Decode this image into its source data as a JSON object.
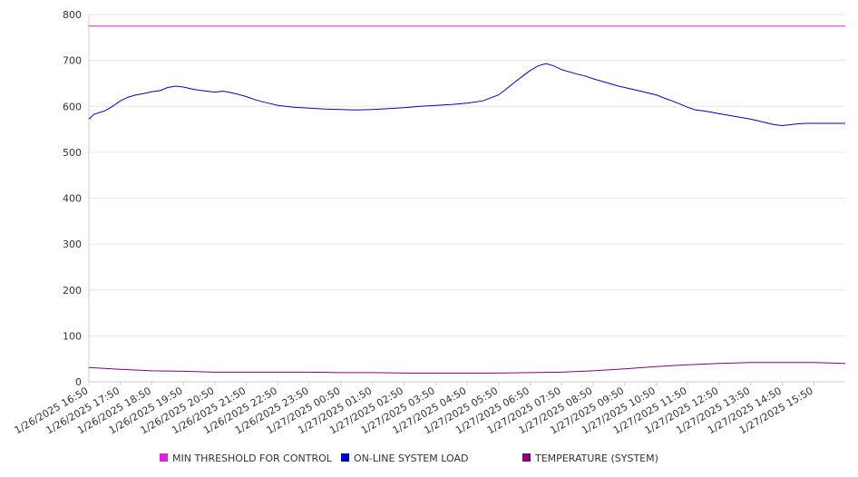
{
  "chart_data": {
    "type": "line",
    "title": "",
    "xlabel": "",
    "ylabel": "",
    "ylim": [
      0,
      800
    ],
    "yticks": [
      0,
      100,
      200,
      300,
      400,
      500,
      600,
      700,
      800
    ],
    "x_tick_labels": [
      "1/26/2025 16:50",
      "1/26/2025 17:50",
      "1/26/2025 18:50",
      "1/26/2025 19:50",
      "1/26/2025 20:50",
      "1/26/2025 21:50",
      "1/26/2025 22:50",
      "1/26/2025 23:50",
      "1/27/2025 00:50",
      "1/27/2025 01:50",
      "1/27/2025 02:50",
      "1/27/2025 03:50",
      "1/27/2025 04:50",
      "1/27/2025 05:50",
      "1/27/2025 06:50",
      "1/27/2025 07:50",
      "1/27/2025 08:50",
      "1/27/2025 09:50",
      "1/27/2025 10:50",
      "1/27/2025 11:50",
      "1/27/2025 12:50",
      "1/27/2025 13:50",
      "1/27/2025 14:50",
      "1/27/2025 15:50"
    ],
    "x_range": [
      "1/26/2025 16:50",
      "1/27/2025 16:50"
    ],
    "grid": true,
    "legend_position": "bottom",
    "series": [
      {
        "name": "MIN THRESHOLD FOR CONTROL",
        "color": "#e020e0",
        "x": [
          "1/26/2025 16:50",
          "1/27/2025 16:50"
        ],
        "values": [
          775,
          775
        ]
      },
      {
        "name": "ON-LINE SYSTEM LOAD",
        "color": "#0000cc",
        "x": [
          "1/26/2025 16:50",
          "1/26/2025 17:00",
          "1/26/2025 17:20",
          "1/26/2025 17:35",
          "1/26/2025 17:50",
          "1/26/2025 18:05",
          "1/26/2025 18:20",
          "1/26/2025 18:35",
          "1/26/2025 18:50",
          "1/26/2025 19:05",
          "1/26/2025 19:20",
          "1/26/2025 19:35",
          "1/26/2025 19:50",
          "1/26/2025 20:05",
          "1/26/2025 20:20",
          "1/26/2025 20:35",
          "1/26/2025 20:50",
          "1/26/2025 21:05",
          "1/26/2025 21:20",
          "1/26/2025 21:35",
          "1/26/2025 21:50",
          "1/26/2025 22:05",
          "1/26/2025 22:20",
          "1/26/2025 22:35",
          "1/26/2025 22:50",
          "1/26/2025 23:20",
          "1/26/2025 23:50",
          "1/27/2025 00:20",
          "1/27/2025 00:50",
          "1/27/2025 01:20",
          "1/27/2025 01:50",
          "1/27/2025 02:20",
          "1/27/2025 02:50",
          "1/27/2025 03:20",
          "1/27/2025 03:50",
          "1/27/2025 04:20",
          "1/27/2025 04:50",
          "1/27/2025 05:20",
          "1/27/2025 05:50",
          "1/27/2025 06:05",
          "1/27/2025 06:20",
          "1/27/2025 06:35",
          "1/27/2025 06:50",
          "1/27/2025 07:05",
          "1/27/2025 07:20",
          "1/27/2025 07:35",
          "1/27/2025 07:50",
          "1/27/2025 08:05",
          "1/27/2025 08:20",
          "1/27/2025 08:35",
          "1/27/2025 08:50",
          "1/27/2025 09:05",
          "1/27/2025 09:20",
          "1/27/2025 09:35",
          "1/27/2025 09:50",
          "1/27/2025 10:05",
          "1/27/2025 10:20",
          "1/27/2025 10:35",
          "1/27/2025 10:50",
          "1/27/2025 11:05",
          "1/27/2025 11:20",
          "1/27/2025 11:35",
          "1/27/2025 11:50",
          "1/27/2025 12:05",
          "1/27/2025 12:20",
          "1/27/2025 12:35",
          "1/27/2025 12:50",
          "1/27/2025 13:05",
          "1/27/2025 13:20",
          "1/27/2025 13:35",
          "1/27/2025 13:50",
          "1/27/2025 14:05",
          "1/27/2025 14:20",
          "1/27/2025 14:35",
          "1/27/2025 14:50",
          "1/27/2025 15:05",
          "1/27/2025 15:20",
          "1/27/2025 15:35",
          "1/27/2025 15:50",
          "1/27/2025 16:05",
          "1/27/2025 16:20",
          "1/27/2025 16:35",
          "1/27/2025 16:50"
        ],
        "values": [
          572,
          583,
          590,
          600,
          612,
          620,
          625,
          628,
          632,
          634,
          641,
          644,
          642,
          638,
          635,
          633,
          631,
          633,
          630,
          626,
          621,
          615,
          610,
          606,
          602,
          598,
          596,
          594,
          593,
          592,
          593,
          595,
          597,
          600,
          602,
          604,
          607,
          612,
          625,
          638,
          652,
          665,
          678,
          688,
          693,
          688,
          680,
          675,
          670,
          666,
          660,
          655,
          650,
          645,
          641,
          637,
          633,
          629,
          625,
          618,
          612,
          605,
          598,
          592,
          590,
          587,
          584,
          581,
          578,
          575,
          572,
          568,
          564,
          560,
          558,
          560,
          562,
          563,
          563,
          563,
          563,
          563,
          563
        ]
      },
      {
        "name": "TEMPERATURE (SYSTEM)",
        "color": "#800080",
        "x": [
          "1/26/2025 16:50",
          "1/26/2025 17:50",
          "1/26/2025 18:50",
          "1/26/2025 19:50",
          "1/26/2025 20:50",
          "1/26/2025 21:50",
          "1/26/2025 22:50",
          "1/26/2025 23:50",
          "1/27/2025 00:50",
          "1/27/2025 01:50",
          "1/27/2025 02:50",
          "1/27/2025 03:50",
          "1/27/2025 04:50",
          "1/27/2025 05:50",
          "1/27/2025 06:50",
          "1/27/2025 07:50",
          "1/27/2025 08:50",
          "1/27/2025 09:50",
          "1/27/2025 10:50",
          "1/27/2025 11:50",
          "1/27/2025 12:50",
          "1/27/2025 13:50",
          "1/27/2025 14:50",
          "1/27/2025 15:50",
          "1/27/2025 16:50"
        ],
        "values": [
          31,
          27,
          24,
          23,
          21,
          21,
          21,
          21,
          20,
          20,
          19,
          19,
          19,
          19,
          20,
          21,
          24,
          28,
          33,
          37,
          40,
          42,
          42,
          42,
          40
        ]
      }
    ]
  }
}
